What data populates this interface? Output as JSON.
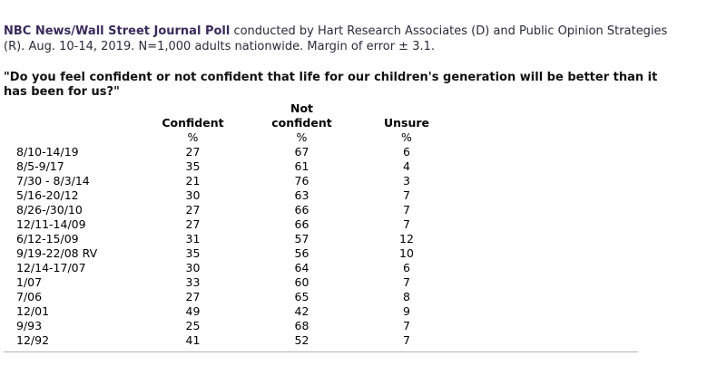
{
  "intro": {
    "poll_name": "NBC News/Wall Street Journal Poll",
    "details": " conducted by Hart Research Associates (D) and Public Opinion Strategies (R). Aug. 10-14, 2019. N=1,000 adults nationwide. Margin of error ± 3.1."
  },
  "question": "\"Do you feel confident or not confident that life for our children's generation will be better than it has been for us?\"",
  "table": {
    "headers": {
      "confident": "Confident",
      "not_line1": "Not",
      "not_line2": "confident",
      "unsure": "Unsure",
      "percent": "%"
    },
    "rows": [
      {
        "date": "8/10-14/19",
        "confident": "27",
        "not_confident": "67",
        "unsure": "6"
      },
      {
        "date": "8/5-9/17",
        "confident": "35",
        "not_confident": "61",
        "unsure": "4"
      },
      {
        "date": "7/30 - 8/3/14",
        "confident": "21",
        "not_confident": "76",
        "unsure": "3"
      },
      {
        "date": "5/16-20/12",
        "confident": "30",
        "not_confident": "63",
        "unsure": "7"
      },
      {
        "date": "8/26-/30/10",
        "confident": "27",
        "not_confident": "66",
        "unsure": "7"
      },
      {
        "date": "12/11-14/09",
        "confident": "27",
        "not_confident": "66",
        "unsure": "7"
      },
      {
        "date": "6/12-15/09",
        "confident": "31",
        "not_confident": "57",
        "unsure": "12"
      },
      {
        "date": "9/19-22/08 RV",
        "confident": "35",
        "not_confident": "56",
        "unsure": "10"
      },
      {
        "date": "12/14-17/07",
        "confident": "30",
        "not_confident": "64",
        "unsure": "6"
      },
      {
        "date": "1/07",
        "confident": "33",
        "not_confident": "60",
        "unsure": "7"
      },
      {
        "date": "7/06",
        "confident": "27",
        "not_confident": "65",
        "unsure": "8"
      },
      {
        "date": "12/01",
        "confident": "49",
        "not_confident": "42",
        "unsure": "9"
      },
      {
        "date": "9/93",
        "confident": "25",
        "not_confident": "68",
        "unsure": "7"
      },
      {
        "date": "12/92",
        "confident": "41",
        "not_confident": "52",
        "unsure": "7"
      }
    ]
  },
  "colors": {
    "poll_name": "#3a2a5c",
    "intro_text": "#2b2b3a",
    "divider": "#b5b5b5"
  }
}
